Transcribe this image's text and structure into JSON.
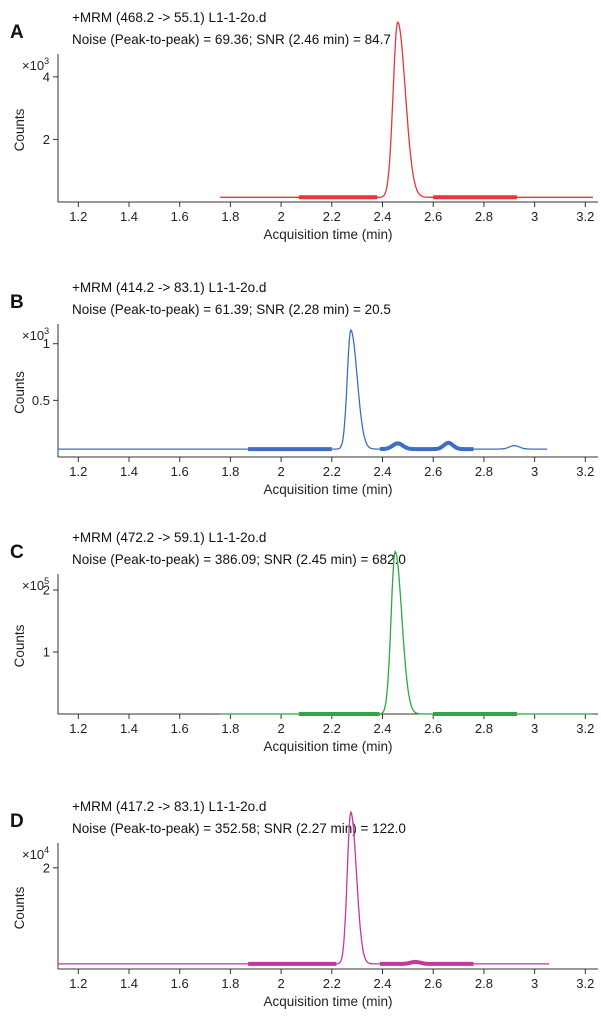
{
  "chart_data": [
    {
      "type": "line",
      "panel_label": "A",
      "title": "+MRM (468.2 -> 55.1) L1-1-2o.d",
      "subtitle": "Noise (Peak-to-peak) = 69.36; SNR (2.46 min) = 84.7",
      "xlabel": "Acquisition time (min)",
      "ylabel": "Counts",
      "y_multiplier": "×10",
      "y_multiplier_exp": "3",
      "xlim": [
        1.12,
        3.25
      ],
      "ylim": [
        0,
        6.2
      ],
      "x_ticks": [
        "1.2",
        "1.4",
        "1.6",
        "1.8",
        "2",
        "2.2",
        "2.4",
        "2.6",
        "2.8",
        "3",
        "3.2"
      ],
      "y_ticks": [
        "2",
        "4"
      ],
      "color": "#e8343a",
      "peak": {
        "center": 2.46,
        "height": 5.6,
        "width_left": 0.018,
        "width_right": 0.03
      },
      "baseline": 0.15,
      "trace_range": [
        1.76,
        3.23
      ],
      "noise_regions": [
        [
          2.07,
          2.38
        ],
        [
          2.6,
          2.93
        ]
      ],
      "bumps": []
    },
    {
      "type": "line",
      "panel_label": "B",
      "title": "+MRM (414.2 -> 83.1) L1-1-2o.d",
      "subtitle": "Noise (Peak-to-peak) = 61.39; SNR (2.28 min) = 20.5",
      "xlabel": "Acquisition time (min)",
      "ylabel": "Counts",
      "y_multiplier": "×10",
      "y_multiplier_exp": "3",
      "xlim": [
        1.12,
        3.25
      ],
      "ylim": [
        0,
        1.58
      ],
      "x_ticks": [
        "1.2",
        "1.4",
        "1.6",
        "1.8",
        "2",
        "2.2",
        "2.4",
        "2.6",
        "2.8",
        "3",
        "3.2"
      ],
      "y_ticks": [
        "0.5",
        "1"
      ],
      "color": "#3b6fc4",
      "peak": {
        "center": 2.275,
        "height": 1.05,
        "width_left": 0.014,
        "width_right": 0.025
      },
      "baseline": 0.07,
      "trace_range": [
        1.12,
        3.05
      ],
      "noise_regions": [
        [
          1.87,
          2.2
        ],
        [
          2.39,
          2.76
        ]
      ],
      "bumps": [
        [
          2.46,
          0.05,
          0.02
        ],
        [
          2.66,
          0.055,
          0.018
        ],
        [
          2.92,
          0.03,
          0.02
        ]
      ]
    },
    {
      "type": "line",
      "panel_label": "C",
      "title": "+MRM (472.2 -> 59.1) L1-1-2o.d",
      "subtitle": "Noise (Peak-to-peak) = 386.09; SNR (2.45 min) = 682.0",
      "xlabel": "Acquisition time (min)",
      "ylabel": "Counts",
      "y_multiplier": "×10",
      "y_multiplier_exp": "5",
      "xlim": [
        1.12,
        3.25
      ],
      "ylim": [
        0,
        3.0
      ],
      "x_ticks": [
        "1.2",
        "1.4",
        "1.6",
        "1.8",
        "2",
        "2.2",
        "2.4",
        "2.6",
        "2.8",
        "3",
        "3.2"
      ],
      "y_ticks": [
        "1",
        "2"
      ],
      "color": "#2da844",
      "peak": {
        "center": 2.45,
        "height": 2.62,
        "width_left": 0.016,
        "width_right": 0.026
      },
      "baseline": 0.0,
      "trace_range": [
        1.76,
        3.23
      ],
      "noise_regions": [
        [
          2.07,
          2.39
        ],
        [
          2.6,
          2.93
        ]
      ],
      "bumps": []
    },
    {
      "type": "line",
      "panel_label": "D",
      "title": "+MRM (417.2 -> 83.1) L1-1-2o.d",
      "subtitle": "Noise (Peak-to-peak) = 352.58; SNR (2.27 min) = 122.0",
      "xlabel": "Acquisition time (min)",
      "ylabel": "Counts",
      "y_multiplier": "×10",
      "y_multiplier_exp": "4",
      "xlim": [
        1.12,
        3.25
      ],
      "ylim": [
        0,
        3.4
      ],
      "x_ticks": [
        "1.2",
        "1.4",
        "1.6",
        "1.8",
        "2",
        "2.2",
        "2.4",
        "2.6",
        "2.8",
        "3",
        "3.2"
      ],
      "y_ticks": [
        "2"
      ],
      "color": "#c4379c",
      "peak": {
        "center": 2.275,
        "height": 3.0,
        "width_left": 0.014,
        "width_right": 0.022
      },
      "baseline": 0.1,
      "trace_range": [
        1.12,
        3.06
      ],
      "noise_regions": [
        [
          1.87,
          2.22
        ],
        [
          2.39,
          2.76
        ]
      ],
      "bumps": [
        [
          2.53,
          0.04,
          0.02
        ]
      ]
    }
  ]
}
